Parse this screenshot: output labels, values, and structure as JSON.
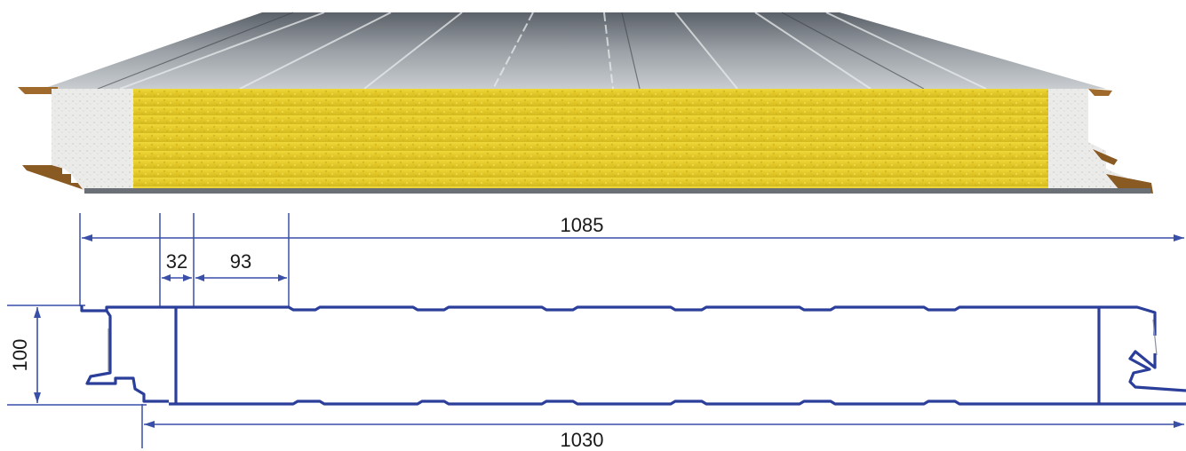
{
  "colors": {
    "drawing_line": "#2b3f9a",
    "dimension_line": "#3a4fa8",
    "insulation_core": "#e6cf2a",
    "steel_face": "#7d858c",
    "end_core": "#e8e8e6"
  },
  "dimensions": {
    "overall_width": "1085",
    "flange": "32",
    "rib_spacing": "93",
    "thickness": "100",
    "covering_width": "1030"
  }
}
